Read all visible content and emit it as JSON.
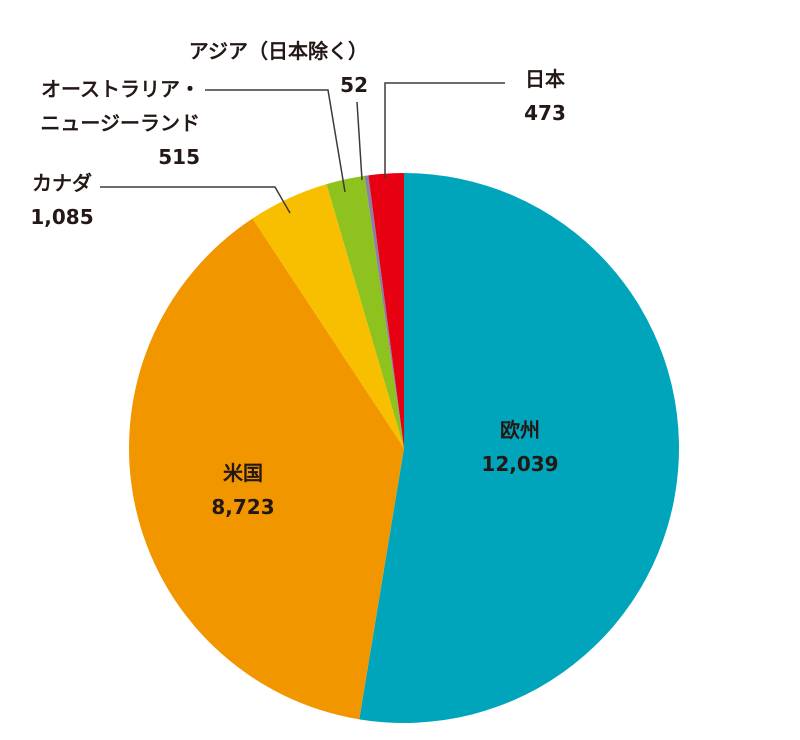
{
  "chart_data": {
    "type": "pie",
    "categories": [
      "欧州",
      "米国",
      "カナダ",
      "オーストラリア・\nニュージーランド",
      "アジア（日本除く）",
      "日本"
    ],
    "values": [
      12039,
      8723,
      1085,
      515,
      52,
      473
    ],
    "value_labels": [
      "12,039",
      "8,723",
      "1,085",
      "515",
      "52",
      "473"
    ],
    "colors": [
      "#00a5bb",
      "#f29600",
      "#f8bf00",
      "#8dc21f",
      "#8a80a8",
      "#e60012"
    ]
  }
}
